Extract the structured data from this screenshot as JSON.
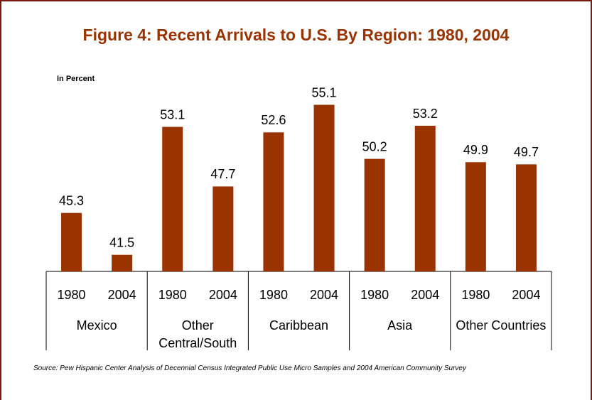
{
  "chart_data": {
    "type": "bar",
    "title": "Figure 4: Recent Arrivals to U.S. By Region: 1980, 2004",
    "y_label": "In Percent",
    "groups": [
      "Mexico",
      "Other Central/South",
      "Caribbean",
      "Asia",
      "Other Countries"
    ],
    "categories": [
      "1980",
      "2004",
      "1980",
      "2004",
      "1980",
      "2004",
      "1980",
      "2004",
      "1980",
      "2004"
    ],
    "values": [
      45.3,
      41.5,
      53.1,
      47.7,
      52.6,
      55.1,
      50.2,
      53.2,
      49.9,
      49.7
    ],
    "color": "#993300",
    "ylim": [
      40,
      57
    ],
    "source": "Source: Pew Hispanic Center Analysis of Decennial Census Integrated Public Use Micro Samples and 2004 American Community Survey"
  }
}
